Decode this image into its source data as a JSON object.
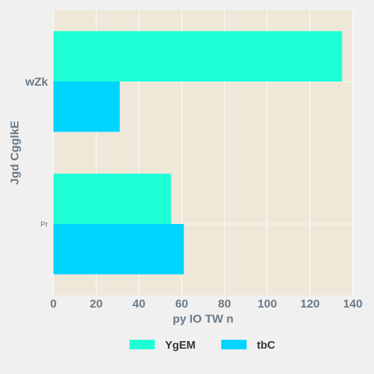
{
  "chart_data": {
    "type": "bar",
    "orientation": "horizontal",
    "title": "",
    "xlabel": "py IO TW n",
    "ylabel": "Jgd CgglkE",
    "categories": [
      "wZk",
      "Pr"
    ],
    "category_label_emphasis": [
      "bold",
      "small"
    ],
    "series": [
      {
        "name": "YgEM",
        "color": "#1effd6",
        "values": [
          135,
          55
        ]
      },
      {
        "name": "tbC",
        "color": "#00d4ff",
        "values": [
          31,
          61
        ]
      }
    ],
    "xlim": [
      0,
      140
    ],
    "x_ticks": [
      0,
      20,
      40,
      60,
      80,
      100,
      120,
      140
    ],
    "grid": true,
    "legend_position": "bottom-center",
    "plot_background": "#efe8d8",
    "page_background": "#f0f0f0"
  }
}
